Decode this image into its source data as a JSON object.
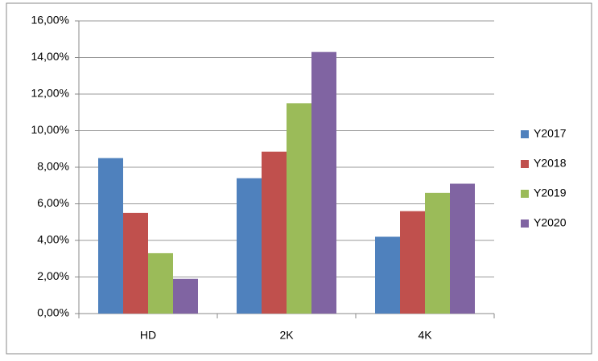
{
  "chart_data": {
    "type": "bar",
    "categories": [
      "HD",
      "2K",
      "4K"
    ],
    "series": [
      {
        "name": "Y2017",
        "color": "#4f81bd",
        "values": [
          8.5,
          7.4,
          4.2
        ]
      },
      {
        "name": "Y2018",
        "color": "#c0504d",
        "values": [
          5.5,
          8.85,
          5.6
        ]
      },
      {
        "name": "Y2019",
        "color": "#9bbb59",
        "values": [
          3.3,
          11.5,
          6.6
        ]
      },
      {
        "name": "Y2020",
        "color": "#8064a2",
        "values": [
          1.9,
          14.3,
          7.1
        ]
      }
    ],
    "ylim": [
      0,
      16
    ],
    "yticks": [
      {
        "value": 0,
        "label": "0,00%"
      },
      {
        "value": 2,
        "label": "2,00%"
      },
      {
        "value": 4,
        "label": "4,00%"
      },
      {
        "value": 6,
        "label": "6,00%"
      },
      {
        "value": 8,
        "label": "8,00%"
      },
      {
        "value": 10,
        "label": "10,00%"
      },
      {
        "value": 12,
        "label": "12,00%"
      },
      {
        "value": 14,
        "label": "14,00%"
      },
      {
        "value": 16,
        "label": "16,00%"
      }
    ],
    "grid": true,
    "legend": "right"
  }
}
